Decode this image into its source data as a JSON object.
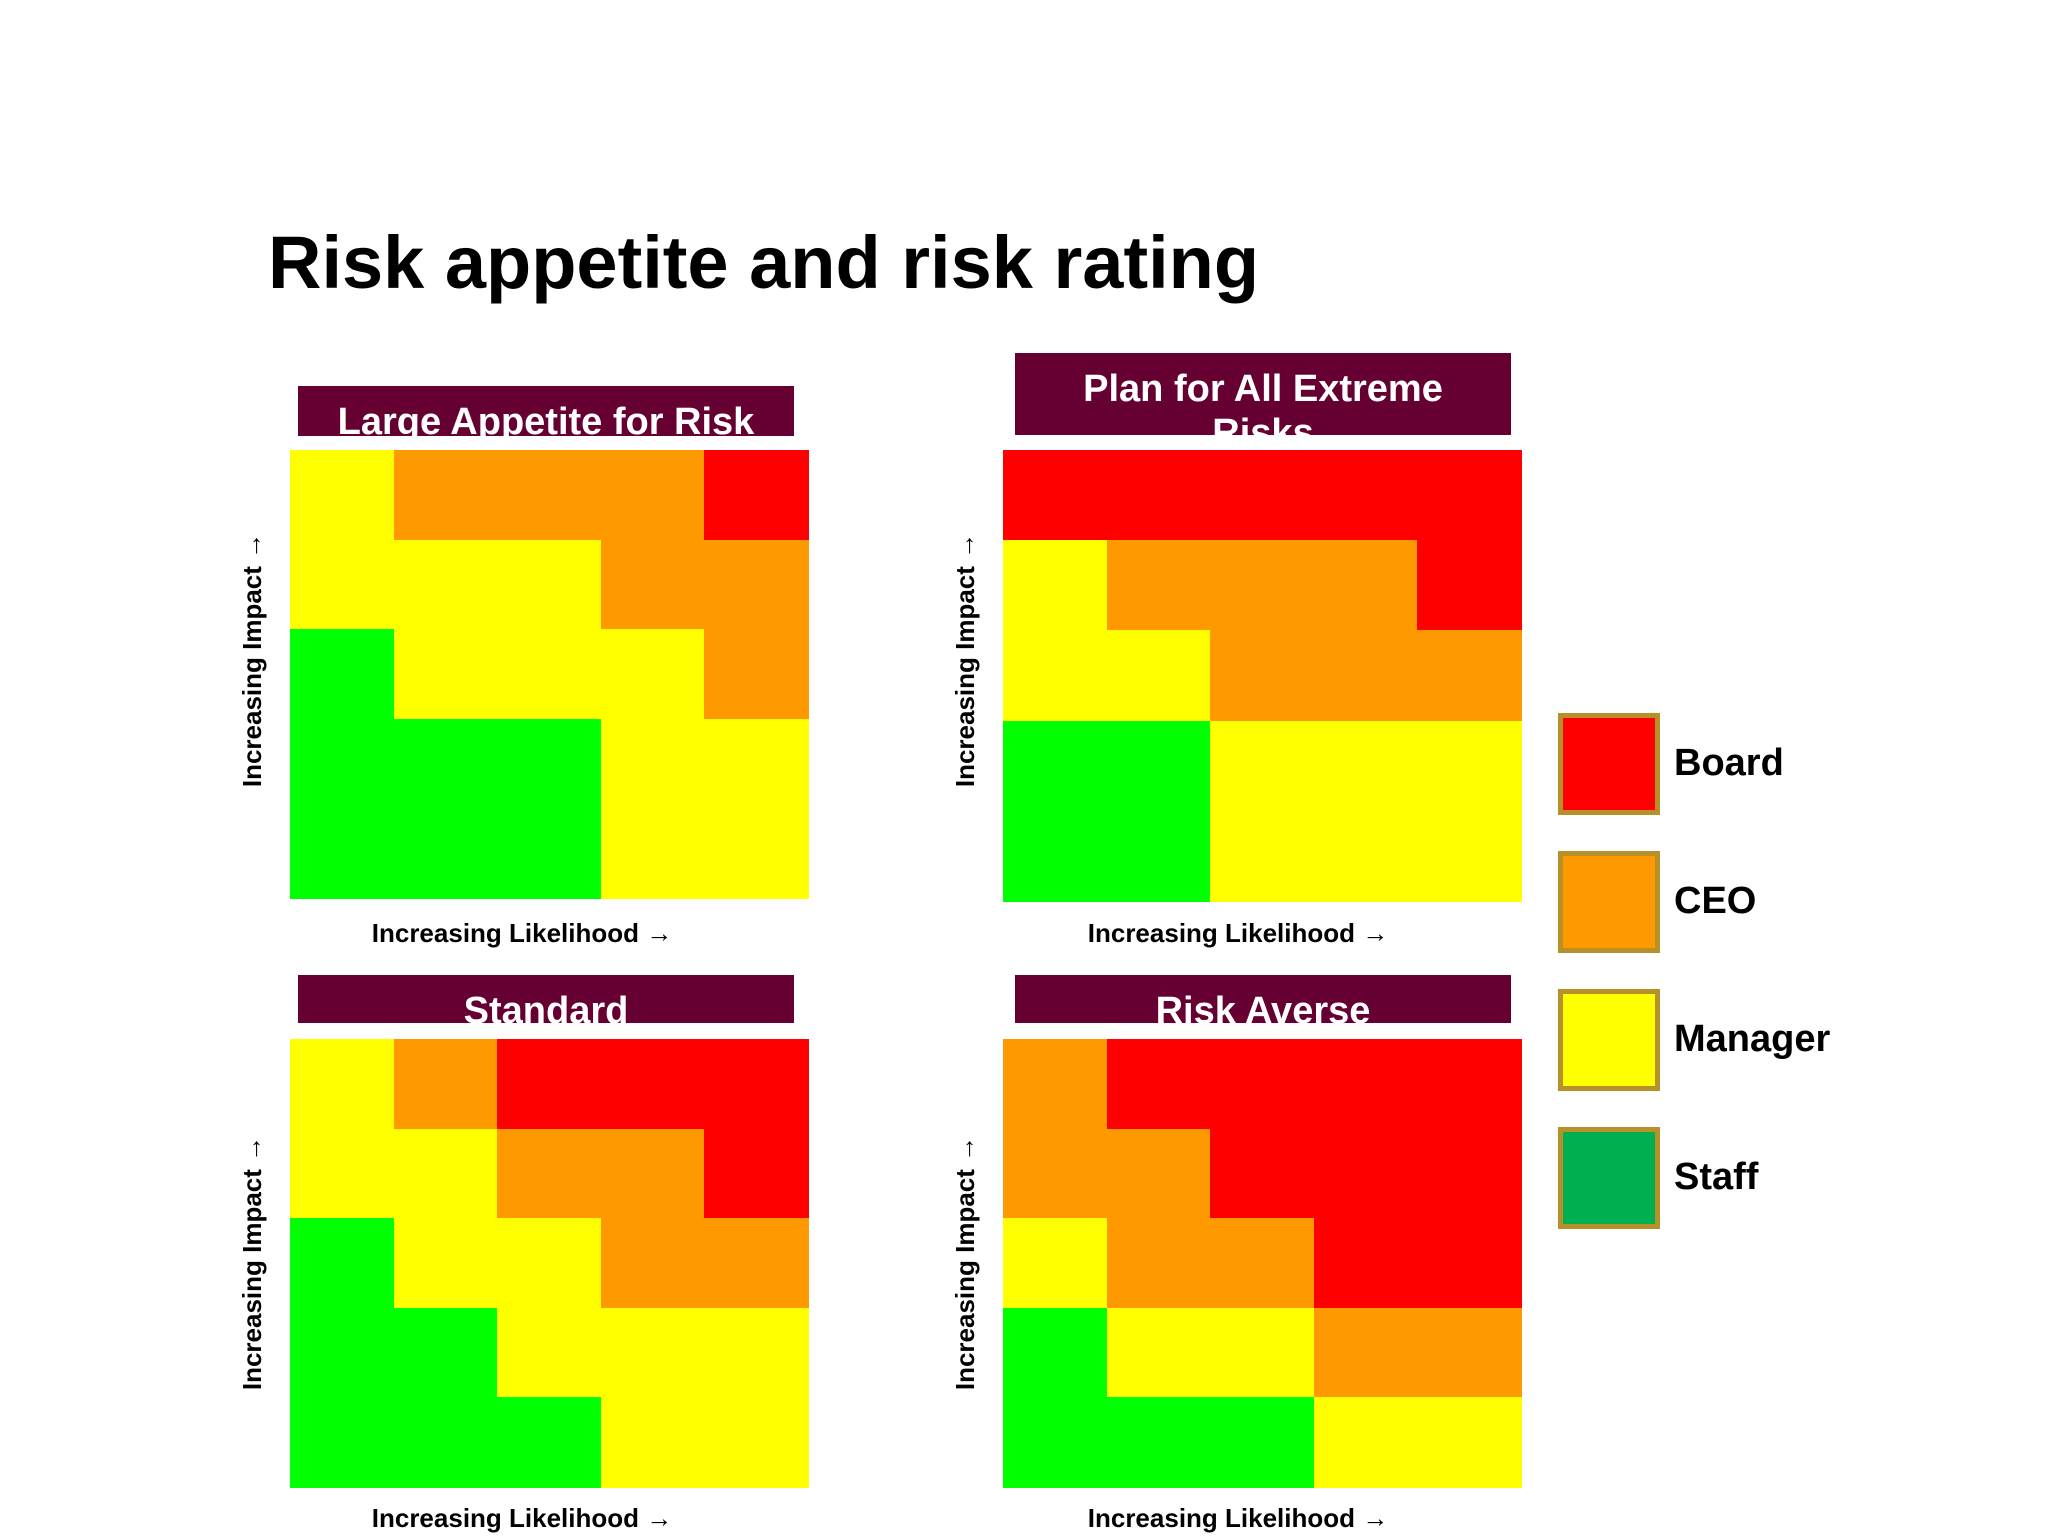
{
  "title": "Risk appetite and risk rating",
  "colors": {
    "board": "#ff0000",
    "ceo": "#ff9900",
    "manager": "#ffff00",
    "staff_cell": "#00ff00",
    "staff_legend": "#00b050",
    "header_bg": "#660033",
    "legend_border": "#b8902a"
  },
  "legend": [
    {
      "key": "board",
      "label": "Board",
      "color": "#ff0000"
    },
    {
      "key": "ceo",
      "label": "CEO",
      "color": "#ff9900"
    },
    {
      "key": "manager",
      "label": "Manager",
      "color": "#ffff00"
    },
    {
      "key": "staff",
      "label": "Staff",
      "color": "#00b050"
    }
  ],
  "chart_data": [
    {
      "type": "heatmap",
      "title": "Large Appetite for Risk",
      "xlabel": "Increasing Likelihood →",
      "ylabel": "Increasing Impact →",
      "rows_top_to_bottom": [
        [
          "manager",
          "ceo",
          "ceo",
          "ceo",
          "board"
        ],
        [
          "manager",
          "manager",
          "manager",
          "ceo",
          "ceo"
        ],
        [
          "staff",
          "manager",
          "manager",
          "manager",
          "ceo"
        ],
        [
          "staff",
          "staff",
          "staff",
          "manager",
          "manager"
        ],
        [
          "staff",
          "staff",
          "staff",
          "manager",
          "manager"
        ]
      ]
    },
    {
      "type": "heatmap",
      "title": "Plan for All Extreme Risks",
      "xlabel": "Increasing Likelihood →",
      "ylabel": "Increasing Impact →",
      "rows_top_to_bottom": [
        [
          "board",
          "board",
          "board",
          "board",
          "board"
        ],
        [
          "manager",
          "ceo",
          "ceo",
          "ceo",
          "board"
        ],
        [
          "manager",
          "manager",
          "ceo",
          "ceo",
          "ceo"
        ],
        [
          "staff",
          "staff",
          "manager",
          "manager",
          "manager"
        ],
        [
          "staff",
          "staff",
          "manager",
          "manager",
          "manager"
        ]
      ]
    },
    {
      "type": "heatmap",
      "title": "Standard",
      "xlabel": "Increasing Likelihood →",
      "ylabel": "Increasing Impact →",
      "rows_top_to_bottom": [
        [
          "manager",
          "ceo",
          "board",
          "board",
          "board"
        ],
        [
          "manager",
          "manager",
          "ceo",
          "ceo",
          "board"
        ],
        [
          "staff",
          "manager",
          "manager",
          "ceo",
          "ceo"
        ],
        [
          "staff",
          "staff",
          "manager",
          "manager",
          "manager"
        ],
        [
          "staff",
          "staff",
          "staff",
          "manager",
          "manager"
        ]
      ]
    },
    {
      "type": "heatmap",
      "title": "Risk Averse",
      "xlabel": "Increasing Likelihood →",
      "ylabel": "Increasing Impact →",
      "rows_top_to_bottom": [
        [
          "ceo",
          "board",
          "board",
          "board",
          "board"
        ],
        [
          "ceo",
          "ceo",
          "board",
          "board",
          "board"
        ],
        [
          "manager",
          "ceo",
          "ceo",
          "board",
          "board"
        ],
        [
          "staff",
          "manager",
          "manager",
          "ceo",
          "ceo"
        ],
        [
          "staff",
          "staff",
          "staff",
          "manager",
          "manager"
        ]
      ]
    }
  ]
}
